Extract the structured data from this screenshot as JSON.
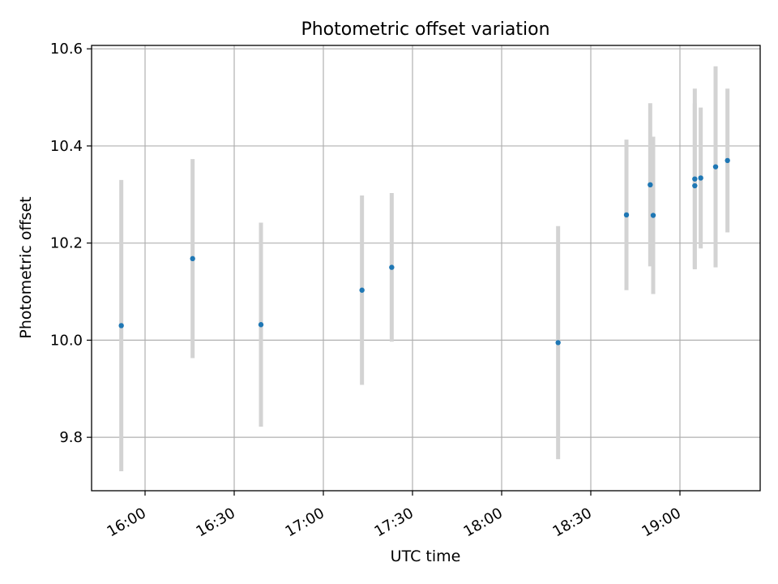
{
  "chart_data": {
    "type": "scatter",
    "title": "Photometric offset variation",
    "xlabel": "UTC time",
    "ylabel": "Photometric offset",
    "x_ticks": [
      "16:00",
      "16:30",
      "17:00",
      "17:30",
      "18:00",
      "18:30",
      "19:00"
    ],
    "y_ticks": [
      "9.8",
      "10.0",
      "10.2",
      "10.4",
      "10.6"
    ],
    "xlim": [
      "15:42",
      "19:27"
    ],
    "ylim": [
      9.69,
      10.607
    ],
    "grid": true,
    "colors": {
      "marker": "#1f77b4",
      "errorbar": "#d3d3d3",
      "grid": "#b0b0b0"
    },
    "points": [
      {
        "time": "15:52",
        "y": 10.03,
        "err": 0.3
      },
      {
        "time": "16:16",
        "y": 10.168,
        "err": 0.205
      },
      {
        "time": "16:39",
        "y": 10.032,
        "err": 0.21
      },
      {
        "time": "17:13",
        "y": 10.103,
        "err": 0.195
      },
      {
        "time": "17:23",
        "y": 10.15,
        "err": 0.153
      },
      {
        "time": "18:19",
        "y": 9.995,
        "err": 0.24
      },
      {
        "time": "18:42",
        "y": 10.258,
        "err": 0.155
      },
      {
        "time": "18:50",
        "y": 10.32,
        "err": 0.168
      },
      {
        "time": "18:51",
        "y": 10.257,
        "err": 0.162
      },
      {
        "time": "19:05",
        "y": 10.318,
        "err": 0.17
      },
      {
        "time": "19:05",
        "y": 10.332,
        "err": 0.186
      },
      {
        "time": "19:07",
        "y": 10.334,
        "err": 0.145
      },
      {
        "time": "19:12",
        "y": 10.357,
        "err": 0.207
      },
      {
        "time": "19:16",
        "y": 10.37,
        "err": 0.148
      }
    ]
  }
}
